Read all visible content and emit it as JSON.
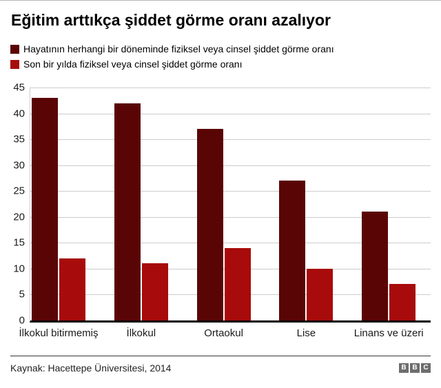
{
  "title": "Eğitim arttıkça şiddet görme oranı azalıyor",
  "legend": [
    {
      "label": "Hayatının herhangi bir döneminde fiziksel veya cinsel şiddet görme oranı",
      "color": "#5a0505"
    },
    {
      "label": "Son bir yılda fiziksel veya cinsel şiddet görme oranı",
      "color": "#a80b0b"
    }
  ],
  "chart_data": {
    "type": "bar",
    "title": "Eğitim arttıkça şiddet görme oranı azalıyor",
    "categories": [
      "İlkokul bitirmemiş",
      "İlkokul",
      "Ortaokul",
      "Lise",
      "Linans ve üzeri"
    ],
    "series": [
      {
        "name": "Hayatının herhangi bir döneminde fiziksel veya cinsel şiddet görme oranı",
        "color": "#5a0505",
        "values": [
          43,
          42,
          37,
          27,
          21
        ]
      },
      {
        "name": "Son bir yılda fiziksel veya cinsel şiddet görme oranı",
        "color": "#a80b0b",
        "values": [
          12,
          11,
          14,
          10,
          7
        ]
      }
    ],
    "xlabel": "",
    "ylabel": "",
    "ylim": [
      0,
      45
    ],
    "yticks": [
      0,
      5,
      10,
      15,
      20,
      25,
      30,
      35,
      40,
      45
    ],
    "grid": true,
    "gridline_color": "#cccccc",
    "legend_position": "top"
  },
  "footer": {
    "source": "Kaynak: Hacettepe Üniversitesi, 2014",
    "logo_letters": [
      "B",
      "B",
      "C"
    ],
    "logo_color": "#6e6e6e"
  }
}
